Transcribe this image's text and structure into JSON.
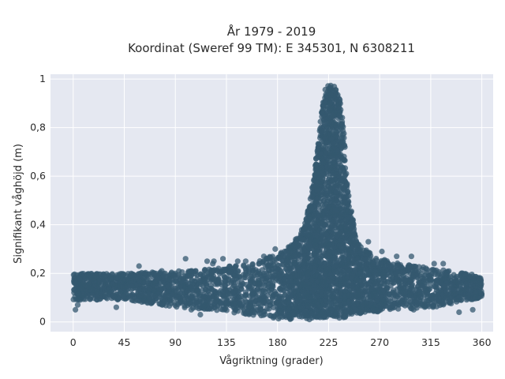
{
  "chart_data": {
    "type": "scatter",
    "title_lines": [
      "År 1979 - 2019",
      "Koordinat (Sweref 99 TM): E 345301, N 6308211"
    ],
    "xlabel": "Vågriktning (grader)",
    "ylabel": "Signifikant våghöjd (m)",
    "xlim": [
      -20,
      370
    ],
    "ylim": [
      -0.04,
      1.02
    ],
    "x_ticks": [
      0,
      45,
      90,
      135,
      180,
      225,
      270,
      315,
      360
    ],
    "x_tick_labels": [
      "0",
      "45",
      "90",
      "135",
      "180",
      "225",
      "270",
      "315",
      "360"
    ],
    "y_ticks": [
      0,
      0.2,
      0.4,
      0.6,
      0.8,
      1
    ],
    "y_tick_labels": [
      "0",
      "0,2",
      "0,4",
      "0,6",
      "0,8",
      "1"
    ],
    "grid": true,
    "marker_color": "#34586f",
    "plot_background": "#e5e8f1",
    "profile": {
      "x": [
        0,
        45,
        90,
        120,
        150,
        180,
        195,
        205,
        212,
        218,
        222,
        226,
        230,
        234,
        238,
        242,
        250,
        265,
        290,
        320,
        360
      ],
      "lower": [
        0.09,
        0.09,
        0.06,
        0.05,
        0.03,
        0.01,
        0.01,
        0.01,
        0.01,
        0.01,
        0.01,
        0.01,
        0.01,
        0.01,
        0.01,
        0.02,
        0.03,
        0.04,
        0.05,
        0.06,
        0.1
      ],
      "upper": [
        0.2,
        0.2,
        0.21,
        0.22,
        0.24,
        0.28,
        0.33,
        0.42,
        0.6,
        0.85,
        0.97,
        0.99,
        0.98,
        0.96,
        0.82,
        0.55,
        0.33,
        0.27,
        0.24,
        0.22,
        0.19
      ]
    },
    "outliers": [
      {
        "x": 2,
        "y": 0.05
      },
      {
        "x": 4,
        "y": 0.07
      },
      {
        "x": 6,
        "y": 0.09
      },
      {
        "x": 38,
        "y": 0.06
      },
      {
        "x": 58,
        "y": 0.23
      },
      {
        "x": 78,
        "y": 0.21
      },
      {
        "x": 99,
        "y": 0.26
      },
      {
        "x": 104,
        "y": 0.05
      },
      {
        "x": 108,
        "y": 0.21
      },
      {
        "x": 112,
        "y": 0.03
      },
      {
        "x": 118,
        "y": 0.25
      },
      {
        "x": 124,
        "y": 0.25
      },
      {
        "x": 123,
        "y": 0.24
      },
      {
        "x": 128,
        "y": 0.22
      },
      {
        "x": 132,
        "y": 0.26
      },
      {
        "x": 145,
        "y": 0.25
      },
      {
        "x": 152,
        "y": 0.25
      },
      {
        "x": 168,
        "y": 0.27
      },
      {
        "x": 178,
        "y": 0.3
      },
      {
        "x": 196,
        "y": 0.34
      },
      {
        "x": 260,
        "y": 0.33
      },
      {
        "x": 272,
        "y": 0.29
      },
      {
        "x": 285,
        "y": 0.27
      },
      {
        "x": 298,
        "y": 0.27
      },
      {
        "x": 300,
        "y": 0.05
      },
      {
        "x": 318,
        "y": 0.24
      },
      {
        "x": 326,
        "y": 0.24
      },
      {
        "x": 340,
        "y": 0.04
      },
      {
        "x": 352,
        "y": 0.05
      }
    ]
  }
}
